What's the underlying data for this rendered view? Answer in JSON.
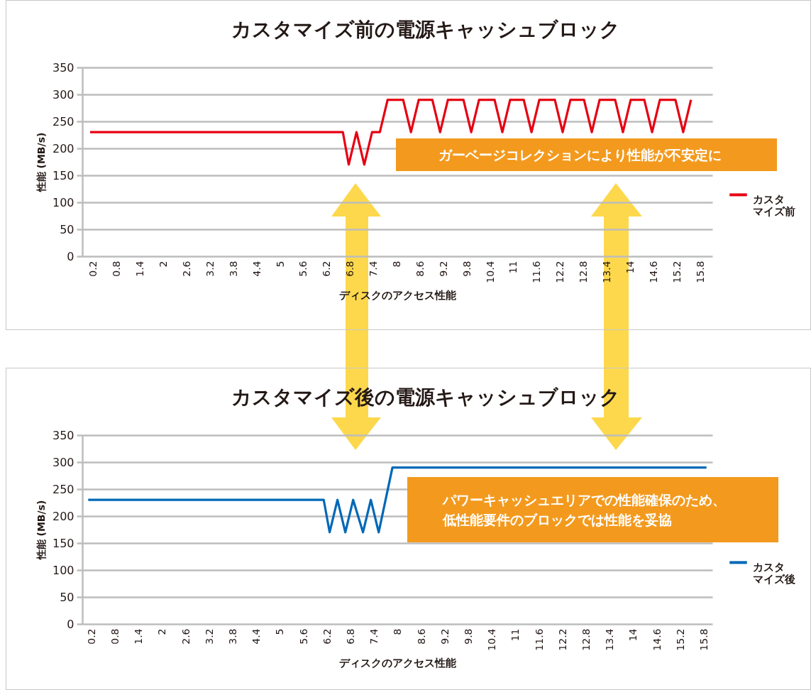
{
  "chart_data": [
    {
      "type": "line",
      "title": "カスタマイズ前の電源キャッシュブロック",
      "xlabel": "ディスクのアクセス性能",
      "ylabel": "性能 (MB/s)",
      "series": [
        {
          "name": "カスタマイズ前",
          "color": "#e60012",
          "x": [
            0.2,
            6.7,
            6.85,
            7.05,
            7.25,
            7.45,
            7.65,
            7.85,
            8.25,
            8.45,
            8.65,
            9.0,
            9.2,
            9.4,
            9.8,
            10.0,
            10.2,
            10.6,
            10.8,
            11.0,
            11.35,
            11.55,
            11.75,
            12.15,
            12.35,
            12.55,
            12.9,
            13.1,
            13.3,
            13.7,
            13.9,
            14.1,
            14.45,
            14.65,
            14.85,
            15.25,
            15.45,
            15.65
          ],
          "values": [
            230,
            230,
            170,
            230,
            170,
            230,
            230,
            290,
            290,
            230,
            290,
            290,
            230,
            290,
            290,
            230,
            290,
            290,
            230,
            290,
            290,
            230,
            290,
            290,
            230,
            290,
            290,
            230,
            290,
            290,
            230,
            290,
            290,
            230,
            290,
            290,
            230,
            290
          ]
        }
      ],
      "xlim": [
        0,
        16.2
      ],
      "xticks": [
        0.2,
        0.8,
        1.4,
        2,
        2.6,
        3.2,
        3.8,
        4.4,
        5,
        5.6,
        6.2,
        6.8,
        7.4,
        8,
        8.6,
        9.2,
        9.8,
        10.4,
        11,
        11.6,
        12.2,
        12.8,
        13.4,
        14,
        14.6,
        15.2,
        15.8
      ],
      "ylim": [
        0,
        350
      ],
      "yticks": [
        0,
        50,
        100,
        150,
        200,
        250,
        300,
        350
      ],
      "grid": "y",
      "legend": "right",
      "annotations": [
        "ガーベージコレクションにより性能が不安定に"
      ]
    },
    {
      "type": "line",
      "title": "カスタマイズ後の電源キャッシュブロック",
      "xlabel": "ディスクのアクセス性能",
      "ylabel": "性能 (MB/s)",
      "series": [
        {
          "name": "カスタマイズ後",
          "color": "#0068b7",
          "x": [
            0.2,
            6.2,
            6.35,
            6.55,
            6.75,
            6.95,
            7.2,
            7.4,
            7.6,
            7.95,
            15.95
          ],
          "values": [
            230,
            230,
            170,
            230,
            170,
            230,
            170,
            230,
            170,
            290,
            290
          ]
        }
      ],
      "xlim": [
        0.05,
        16.1
      ],
      "xticks": [
        0.2,
        0.8,
        1.4,
        2,
        2.6,
        3.2,
        3.8,
        4.4,
        5,
        5.6,
        6.2,
        6.8,
        7.4,
        8,
        8.6,
        9.2,
        9.8,
        10.4,
        11,
        11.6,
        12.2,
        12.8,
        13.4,
        14,
        14.6,
        15.2,
        15.8
      ],
      "ylim": [
        0,
        350
      ],
      "yticks": [
        0,
        50,
        100,
        150,
        200,
        250,
        300,
        350
      ],
      "grid": "y",
      "legend": "right",
      "annotations": [
        "パワーキャッシュエリアでの性能確保のため、低性能要件のブロックでは性能を妥協"
      ]
    }
  ]
}
